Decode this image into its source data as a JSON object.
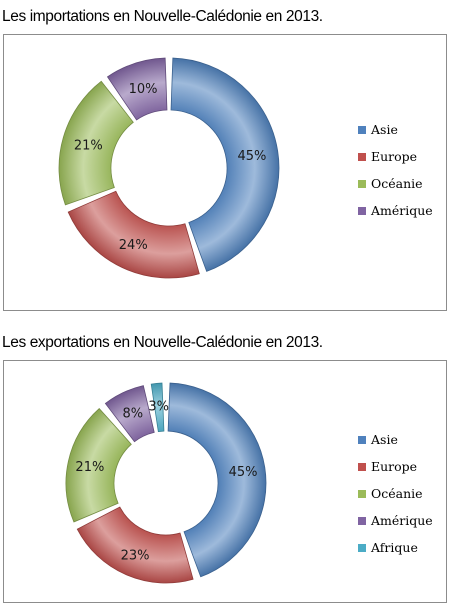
{
  "chart_data": [
    {
      "type": "pie",
      "title": "Les importations en Nouvelle-Calédonie en 2013.",
      "categories": [
        "Asie",
        "Europe",
        "Océanie",
        "Amérique"
      ],
      "values": [
        45,
        24,
        21,
        10
      ],
      "labels": [
        "45%",
        "24%",
        "21%",
        "10%"
      ],
      "colors": [
        "#4f81bd",
        "#c0504d",
        "#9bbb59",
        "#8064a2"
      ],
      "legend": "right"
    },
    {
      "type": "pie",
      "title": "Les exportations en Nouvelle-Calédonie en 2013.",
      "categories": [
        "Asie",
        "Europe",
        "Océanie",
        "Amérique",
        "Afrique"
      ],
      "values": [
        45,
        23,
        21,
        8,
        3
      ],
      "labels": [
        "45%",
        "23%",
        "21%",
        "8%",
        "3%"
      ],
      "colors": [
        "#4f81bd",
        "#c0504d",
        "#9bbb59",
        "#8064a2",
        "#4bacc6"
      ],
      "legend": "right"
    }
  ]
}
